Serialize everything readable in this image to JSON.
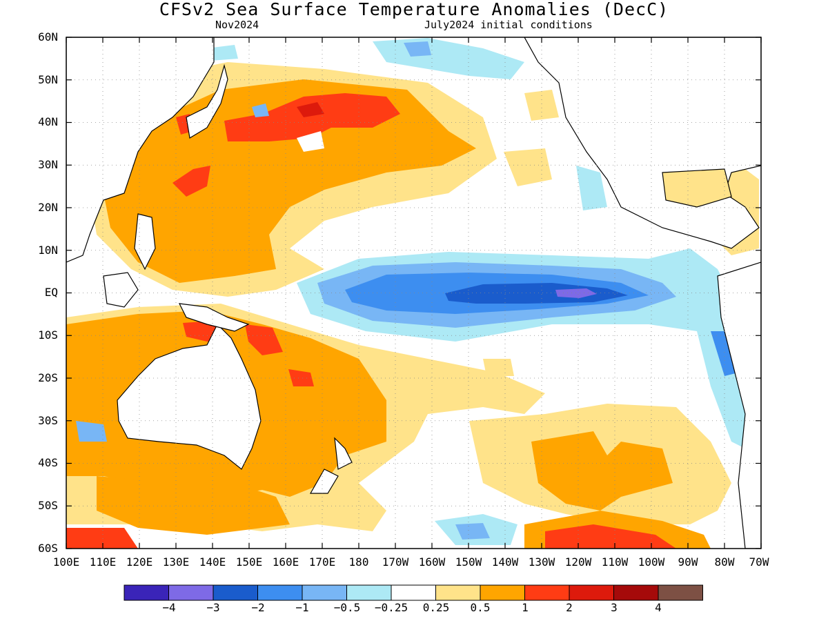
{
  "map": {
    "title": "CFSv2 Sea Surface Temperature Anomalies (DecC)",
    "subtitle_left": "Nov2024",
    "subtitle_right": "July2024 initial conditions",
    "lat_labels": [
      "60N",
      "50N",
      "40N",
      "30N",
      "20N",
      "10N",
      "EQ",
      "10S",
      "20S",
      "30S",
      "40S",
      "50S",
      "60S"
    ],
    "lon_labels": [
      "100E",
      "110E",
      "120E",
      "130E",
      "140E",
      "150E",
      "160E",
      "170E",
      "180",
      "170W",
      "160W",
      "150W",
      "140W",
      "130W",
      "120W",
      "110W",
      "100W",
      "90W",
      "80W",
      "70W"
    ]
  },
  "colorbar": {
    "colors": [
      "#3a24b8",
      "#7e6ae6",
      "#1a5ccc",
      "#3d8ef0",
      "#78b6f5",
      "#ade9f5",
      "#ffffff",
      "#ffe38a",
      "#ffa500",
      "#ff3c14",
      "#dd1a0c",
      "#a50a0a",
      "#7d5044"
    ],
    "labels": [
      "−4",
      "−3",
      "−2",
      "−1",
      "−0.5",
      "−0.25",
      "0.25",
      "0.5",
      "1",
      "2",
      "3",
      "4"
    ]
  }
}
